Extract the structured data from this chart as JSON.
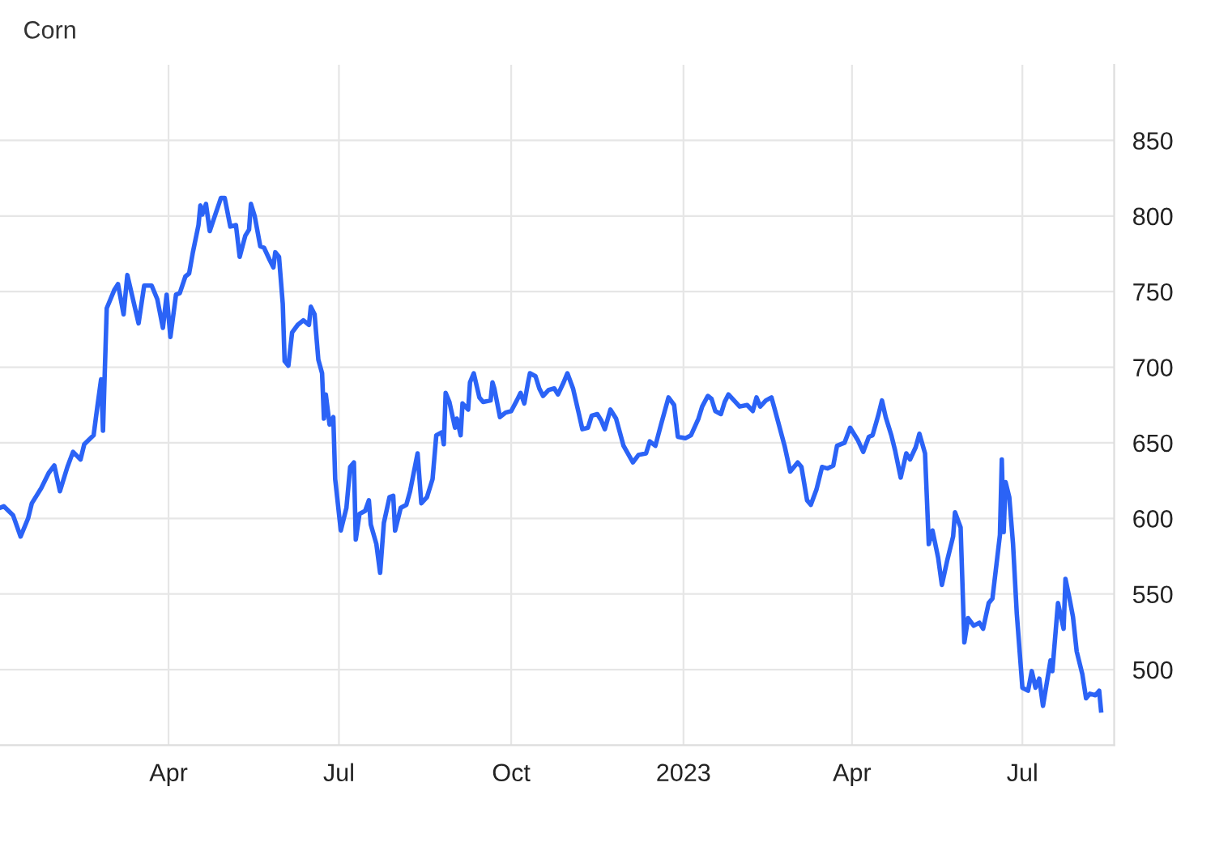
{
  "chart_data": {
    "type": "line",
    "title": "Corn",
    "x": [
      "2022-01-01",
      "2022-01-03",
      "2022-01-08",
      "2022-01-12",
      "2022-01-16",
      "2022-01-18",
      "2022-01-23",
      "2022-01-27",
      "2022-01-30",
      "2022-02-02",
      "2022-02-06",
      "2022-02-09",
      "2022-02-13",
      "2022-02-15",
      "2022-02-20",
      "2022-02-22",
      "2022-02-24",
      "2022-02-25",
      "2022-02-27",
      "2022-03-03",
      "2022-03-05",
      "2022-03-08",
      "2022-03-10",
      "2022-03-16",
      "2022-03-19",
      "2022-03-23",
      "2022-03-26",
      "2022-03-29",
      "2022-03-31",
      "2022-04-02",
      "2022-04-05",
      "2022-04-07",
      "2022-04-10",
      "2022-04-12",
      "2022-04-14",
      "2022-04-17",
      "2022-04-18",
      "2022-04-19",
      "2022-04-21",
      "2022-04-23",
      "2022-04-26",
      "2022-04-29",
      "2022-05-01",
      "2022-05-04",
      "2022-05-07",
      "2022-05-09",
      "2022-05-12",
      "2022-05-14",
      "2022-05-15",
      "2022-05-17",
      "2022-05-20",
      "2022-05-22",
      "2022-05-25",
      "2022-05-27",
      "2022-05-28",
      "2022-05-30",
      "2022-06-01",
      "2022-06-02",
      "2022-06-04",
      "2022-06-06",
      "2022-06-09",
      "2022-06-12",
      "2022-06-15",
      "2022-06-16",
      "2022-06-18",
      "2022-06-20",
      "2022-06-22",
      "2022-06-23",
      "2022-06-24",
      "2022-06-26",
      "2022-06-28",
      "2022-06-29",
      "2022-07-02",
      "2022-07-05",
      "2022-07-07",
      "2022-07-09",
      "2022-07-10",
      "2022-07-12",
      "2022-07-15",
      "2022-07-17",
      "2022-07-18",
      "2022-07-21",
      "2022-07-23",
      "2022-07-25",
      "2022-07-28",
      "2022-07-30",
      "2022-07-31",
      "2022-08-03",
      "2022-08-06",
      "2022-08-08",
      "2022-08-12",
      "2022-08-14",
      "2022-08-17",
      "2022-08-20",
      "2022-08-22",
      "2022-08-25",
      "2022-08-26",
      "2022-08-27",
      "2022-08-29",
      "2022-09-01",
      "2022-09-02",
      "2022-09-04",
      "2022-09-05",
      "2022-09-08",
      "2022-09-09",
      "2022-09-11",
      "2022-09-14",
      "2022-09-16",
      "2022-09-20",
      "2022-09-21",
      "2022-09-22",
      "2022-09-25",
      "2022-09-28",
      "2022-10-01",
      "2022-10-04",
      "2022-10-06",
      "2022-10-08",
      "2022-10-10",
      "2022-10-11",
      "2022-10-14",
      "2022-10-16",
      "2022-10-18",
      "2022-10-21",
      "2022-10-24",
      "2022-10-26",
      "2022-10-29",
      "2022-10-31",
      "2022-11-03",
      "2022-11-06",
      "2022-11-08",
      "2022-11-11",
      "2022-11-13",
      "2022-11-16",
      "2022-11-18",
      "2022-11-20",
      "2022-11-23",
      "2022-11-26",
      "2022-11-30",
      "2022-12-05",
      "2022-12-08",
      "2022-12-12",
      "2022-12-14",
      "2022-12-17",
      "2022-12-20",
      "2022-12-24",
      "2022-12-27",
      "2022-12-29",
      "2023-01-02",
      "2023-01-05",
      "2023-01-09",
      "2023-01-11",
      "2023-01-14",
      "2023-01-16",
      "2023-01-18",
      "2023-01-21",
      "2023-01-23",
      "2023-01-25",
      "2023-01-28",
      "2023-01-31",
      "2023-02-04",
      "2023-02-07",
      "2023-02-09",
      "2023-02-11",
      "2023-02-14",
      "2023-02-17",
      "2023-02-19",
      "2023-02-24",
      "2023-02-27",
      "2023-03-03",
      "2023-03-05",
      "2023-03-08",
      "2023-03-10",
      "2023-03-13",
      "2023-03-16",
      "2023-03-19",
      "2023-03-22",
      "2023-03-24",
      "2023-03-28",
      "2023-03-31",
      "2023-04-04",
      "2023-04-07",
      "2023-04-10",
      "2023-04-12",
      "2023-04-15",
      "2023-04-17",
      "2023-04-19",
      "2023-04-22",
      "2023-04-24",
      "2023-04-27",
      "2023-04-30",
      "2023-05-02",
      "2023-05-05",
      "2023-05-07",
      "2023-05-10",
      "2023-05-12",
      "2023-05-14",
      "2023-05-17",
      "2023-05-19",
      "2023-05-22",
      "2023-05-25",
      "2023-05-26",
      "2023-05-29",
      "2023-05-31",
      "2023-06-02",
      "2023-06-05",
      "2023-06-08",
      "2023-06-10",
      "2023-06-13",
      "2023-06-15",
      "2023-06-19",
      "2023-06-20",
      "2023-06-21",
      "2023-06-22",
      "2023-06-24",
      "2023-06-26",
      "2023-06-28",
      "2023-07-01",
      "2023-07-04",
      "2023-07-06",
      "2023-07-08",
      "2023-07-10",
      "2023-07-12",
      "2023-07-16",
      "2023-07-17",
      "2023-07-20",
      "2023-07-23",
      "2023-07-24",
      "2023-07-26",
      "2023-07-28",
      "2023-07-30",
      "2023-08-02",
      "2023-08-04",
      "2023-08-06",
      "2023-08-09",
      "2023-08-11",
      "2023-08-12"
    ],
    "series": [
      {
        "color": "#2b63f6",
        "values": [
          607,
          608,
          602,
          588,
          600,
          610,
          620,
          630,
          635,
          618,
          634,
          644,
          639,
          649,
          655,
          674,
          692,
          658,
          739,
          751,
          755,
          735,
          761,
          729,
          754,
          754,
          745,
          726,
          748,
          720,
          748,
          749,
          760,
          762,
          776,
          794,
          807,
          801,
          808,
          790,
          801,
          812,
          812,
          793,
          794,
          773,
          787,
          791,
          808,
          800,
          780,
          779,
          771,
          766,
          776,
          773,
          742,
          704,
          701,
          723,
          728,
          731,
          728,
          740,
          735,
          705,
          696,
          666,
          682,
          662,
          667,
          626,
          592,
          607,
          634,
          637,
          586,
          603,
          605,
          612,
          596,
          583,
          564,
          597,
          614,
          615,
          592,
          607,
          609,
          618,
          643,
          610,
          614,
          626,
          655,
          657,
          649,
          683,
          677,
          660,
          666,
          655,
          676,
          672,
          690,
          696,
          680,
          677,
          678,
          690,
          686,
          667,
          670,
          671,
          678,
          683,
          676,
          690,
          696,
          694,
          686,
          681,
          685,
          686,
          682,
          690,
          696,
          686,
          670,
          659,
          660,
          668,
          669,
          665,
          659,
          672,
          666,
          648,
          637,
          642,
          643,
          651,
          648,
          662,
          680,
          675,
          654,
          653,
          655,
          666,
          674,
          681,
          679,
          671,
          669,
          677,
          682,
          678,
          674,
          675,
          671,
          680,
          674,
          678,
          680,
          671,
          648,
          631,
          637,
          634,
          612,
          609,
          619,
          634,
          633,
          635,
          648,
          650,
          660,
          652,
          644,
          654,
          655,
          668,
          678,
          667,
          655,
          645,
          627,
          643,
          639,
          647,
          656,
          643,
          583,
          592,
          574,
          556,
          573,
          588,
          604,
          594,
          518,
          534,
          529,
          531,
          527,
          544,
          547,
          589,
          639,
          591,
          624,
          614,
          583,
          537,
          488,
          486,
          499,
          488,
          494,
          476,
          506,
          499,
          544,
          527,
          560,
          548,
          535,
          512,
          497,
          481,
          484,
          483,
          486,
          473
        ]
      }
    ],
    "xlim": [
      "2022-01-01",
      "2023-08-19"
    ],
    "xticks": [
      {
        "value": "2022-04-01",
        "label": "Apr"
      },
      {
        "value": "2022-07-01",
        "label": "Jul"
      },
      {
        "value": "2022-10-01",
        "label": "Oct"
      },
      {
        "value": "2023-01-01",
        "label": "2023"
      },
      {
        "value": "2023-04-01",
        "label": "Apr"
      },
      {
        "value": "2023-07-01",
        "label": "Jul"
      }
    ],
    "ylim": [
      450,
      900
    ],
    "yticks": [
      500,
      550,
      600,
      650,
      700,
      750,
      800,
      850
    ],
    "grid": true,
    "legend": false
  }
}
